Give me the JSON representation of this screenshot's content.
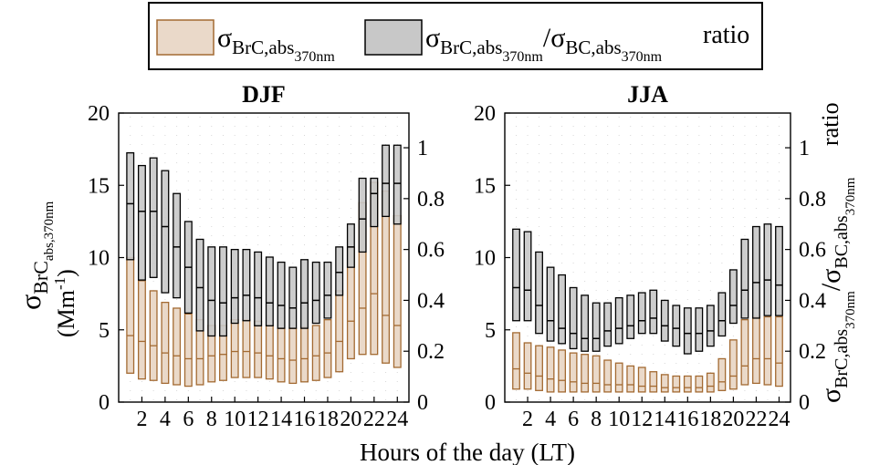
{
  "colors": {
    "brc_fill": "#ead9c9",
    "brc_edge": "#a36a32",
    "ratio_fill": "#c8c8c8",
    "ratio_edge": "#000000",
    "median": "#000000"
  },
  "legend": {
    "item1": {
      "sym": "σ",
      "sub1": "BrC,abs",
      "sub2": "370nm"
    },
    "item2": {
      "sym": "σ",
      "sub1": "BrC,abs",
      "sub2": "370nm",
      "slash": "/σ",
      "sub3": "BC,abs",
      "sub4": "370nm",
      "suffix": "ratio"
    }
  },
  "axis_labels": {
    "ylabel_left": {
      "sym": "σ",
      "sub1": "BrC",
      "sub2": "abs,370nm",
      "unit_open": "(Mm",
      "unit_exp": "-1",
      "unit_close": ")"
    },
    "ylabel_right": {
      "sym": "σ",
      "sub1": "BrC,abs",
      "sub2": "370nm",
      "slash": "/σ",
      "sub3": "BC,abs",
      "sub4": "370nm",
      "suffix": "ratio"
    },
    "xlabel": "Hours of the day (LT)"
  },
  "chart_data": [
    {
      "type": "box",
      "title": "DJF",
      "x_ticks": [
        2,
        4,
        6,
        8,
        10,
        12,
        14,
        16,
        18,
        20,
        22,
        24
      ],
      "y_left_ticks": [
        0,
        5,
        10,
        15,
        20
      ],
      "y_right_ticks": [
        0,
        0.2,
        0.4,
        0.6,
        0.8,
        1
      ],
      "ylim_left": [
        0,
        20
      ],
      "ylim_right": [
        0,
        1.1364
      ],
      "xlim": [
        0,
        25
      ],
      "hours": [
        1,
        2,
        3,
        4,
        5,
        6,
        7,
        8,
        9,
        10,
        11,
        12,
        13,
        14,
        15,
        16,
        17,
        18,
        19,
        20,
        21,
        22,
        23,
        24
      ],
      "brc": {
        "q1": [
          2.0,
          1.6,
          1.5,
          1.3,
          1.2,
          1.1,
          1.2,
          1.4,
          1.5,
          1.7,
          1.7,
          1.7,
          1.6,
          1.4,
          1.3,
          1.4,
          1.5,
          1.7,
          2.1,
          3.0,
          3.3,
          3.3,
          2.7,
          2.4
        ],
        "median": [
          4.6,
          4.2,
          3.9,
          3.4,
          3.2,
          3.0,
          3.0,
          3.2,
          3.3,
          3.5,
          3.5,
          3.4,
          3.2,
          3.0,
          2.9,
          3.0,
          3.2,
          3.4,
          4.2,
          5.6,
          6.5,
          7.5,
          6.0,
          5.3
        ],
        "q3": [
          10.0,
          8.4,
          7.7,
          6.9,
          6.5,
          6.1,
          5.7,
          5.3,
          5.3,
          5.7,
          5.7,
          5.6,
          5.3,
          5.1,
          5.1,
          5.2,
          5.3,
          5.7,
          7.7,
          10.7,
          13.8,
          15.2,
          14.6,
          12.9
        ]
      },
      "ratio": {
        "q1": [
          0.56,
          0.48,
          0.49,
          0.43,
          0.41,
          0.35,
          0.28,
          0.26,
          0.26,
          0.31,
          0.32,
          0.3,
          0.3,
          0.29,
          0.29,
          0.29,
          0.31,
          0.33,
          0.42,
          0.53,
          0.59,
          0.69,
          0.73,
          0.7
        ],
        "median": [
          0.78,
          0.75,
          0.75,
          0.69,
          0.61,
          0.53,
          0.45,
          0.4,
          0.39,
          0.41,
          0.42,
          0.41,
          0.39,
          0.38,
          0.37,
          0.39,
          0.4,
          0.42,
          0.51,
          0.61,
          0.72,
          0.82,
          0.86,
          0.86
        ],
        "q3": [
          0.98,
          0.93,
          0.96,
          0.91,
          0.82,
          0.71,
          0.64,
          0.61,
          0.61,
          0.6,
          0.6,
          0.59,
          0.57,
          0.55,
          0.53,
          0.56,
          0.55,
          0.55,
          0.61,
          0.7,
          0.88,
          0.88,
          1.01,
          1.01
        ]
      }
    },
    {
      "type": "box",
      "title": "JJA",
      "x_ticks": [
        2,
        4,
        6,
        8,
        10,
        12,
        14,
        16,
        18,
        20,
        22,
        24
      ],
      "y_left_ticks": [
        0,
        5,
        10,
        15,
        20
      ],
      "y_right_ticks": [
        0,
        0.2,
        0.4,
        0.6,
        0.8,
        1
      ],
      "ylim_left": [
        0,
        20
      ],
      "ylim_right": [
        0,
        1.1364
      ],
      "xlim": [
        0,
        25
      ],
      "hours": [
        1,
        2,
        3,
        4,
        5,
        6,
        7,
        8,
        9,
        10,
        11,
        12,
        13,
        14,
        15,
        16,
        17,
        18,
        19,
        20,
        21,
        22,
        23,
        24
      ],
      "brc": {
        "q1": [
          0.9,
          0.9,
          0.8,
          0.7,
          0.7,
          0.7,
          0.7,
          0.7,
          0.7,
          0.7,
          0.7,
          0.7,
          0.7,
          0.7,
          0.7,
          0.7,
          0.7,
          0.7,
          0.8,
          0.9,
          1.2,
          1.3,
          1.2,
          1.1
        ],
        "median": [
          2.3,
          2.0,
          1.8,
          1.6,
          1.5,
          1.4,
          1.3,
          1.3,
          1.2,
          1.2,
          1.2,
          1.1,
          1.1,
          1.0,
          1.0,
          1.0,
          1.0,
          1.1,
          1.4,
          1.8,
          2.5,
          3.0,
          3.0,
          2.7
        ],
        "q3": [
          4.8,
          4.1,
          3.9,
          3.8,
          3.6,
          3.4,
          3.3,
          3.2,
          2.9,
          2.7,
          2.5,
          2.4,
          2.1,
          1.9,
          1.8,
          1.8,
          1.8,
          2.0,
          3.0,
          4.3,
          5.7,
          5.9,
          5.9,
          5.9
        ]
      },
      "ratio": {
        "q1": [
          0.32,
          0.32,
          0.27,
          0.24,
          0.23,
          0.21,
          0.2,
          0.2,
          0.22,
          0.23,
          0.25,
          0.27,
          0.27,
          0.24,
          0.22,
          0.19,
          0.2,
          0.22,
          0.26,
          0.31,
          0.33,
          0.33,
          0.34,
          0.34
        ],
        "median": [
          0.45,
          0.44,
          0.38,
          0.32,
          0.29,
          0.27,
          0.25,
          0.25,
          0.28,
          0.29,
          0.3,
          0.32,
          0.33,
          0.3,
          0.29,
          0.27,
          0.27,
          0.28,
          0.32,
          0.38,
          0.44,
          0.47,
          0.48,
          0.46
        ],
        "q3": [
          0.68,
          0.67,
          0.59,
          0.53,
          0.5,
          0.45,
          0.42,
          0.39,
          0.39,
          0.41,
          0.42,
          0.43,
          0.44,
          0.4,
          0.38,
          0.37,
          0.37,
          0.38,
          0.43,
          0.52,
          0.64,
          0.69,
          0.7,
          0.69
        ]
      }
    }
  ]
}
